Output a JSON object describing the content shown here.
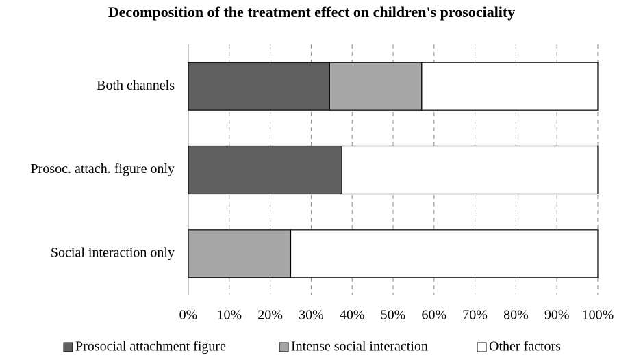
{
  "chart_data": {
    "type": "stacked-barh",
    "title": "Decomposition of the treatment effect on children's prosociality",
    "categories": [
      "Both channels",
      "Prosoc. attach. figure only",
      "Social interaction only"
    ],
    "series": [
      {
        "name": "Prosocial attachment figure",
        "color": "#606060",
        "values": [
          34.5,
          37.5,
          0
        ]
      },
      {
        "name": "Intense social interaction",
        "color": "#a6a6a6",
        "values": [
          22.5,
          0,
          25
        ]
      },
      {
        "name": "Other factors",
        "color": "#ffffff",
        "values": [
          43,
          62.5,
          75
        ]
      }
    ],
    "xlim": [
      0,
      100
    ],
    "xticks": [
      {
        "value": 0,
        "label": "0%"
      },
      {
        "value": 10,
        "label": "10%"
      },
      {
        "value": 20,
        "label": "20%"
      },
      {
        "value": 30,
        "label": "30%"
      },
      {
        "value": 40,
        "label": "40%"
      },
      {
        "value": 50,
        "label": "50%"
      },
      {
        "value": 60,
        "label": "60%"
      },
      {
        "value": 70,
        "label": "70%"
      },
      {
        "value": 80,
        "label": "80%"
      },
      {
        "value": 90,
        "label": "90%"
      },
      {
        "value": 100,
        "label": "100%"
      }
    ],
    "grid": true,
    "legend": "bottom"
  }
}
